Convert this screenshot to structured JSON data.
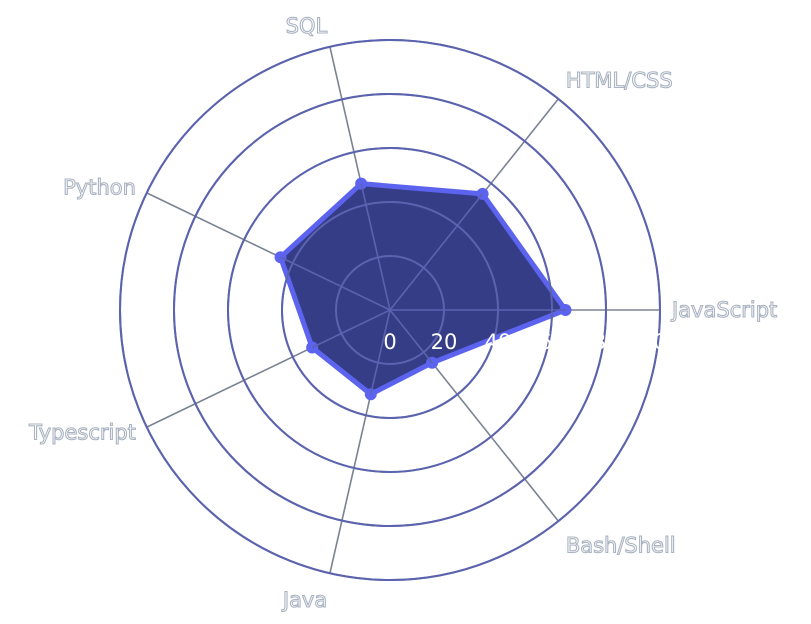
{
  "chart_data": {
    "type": "radar",
    "title": "",
    "categories": [
      "JavaScript",
      "HTML/CSS",
      "SQL",
      "Python",
      "Typescript",
      "Java",
      "Bash/Shell"
    ],
    "series": [
      {
        "values": [
          65,
          55,
          48,
          45,
          32,
          32,
          25
        ],
        "fill_color": "#363d87",
        "line_color": "#5c63ef"
      }
    ],
    "radial_range": [
      0,
      100
    ],
    "radial_ticks": [
      0,
      20,
      40,
      60,
      80,
      100
    ],
    "grid": true,
    "legend": "none",
    "colors": {
      "grid": "#7a8393",
      "label_outline": "#aab3c2",
      "tick_text": "#ffffff"
    }
  }
}
